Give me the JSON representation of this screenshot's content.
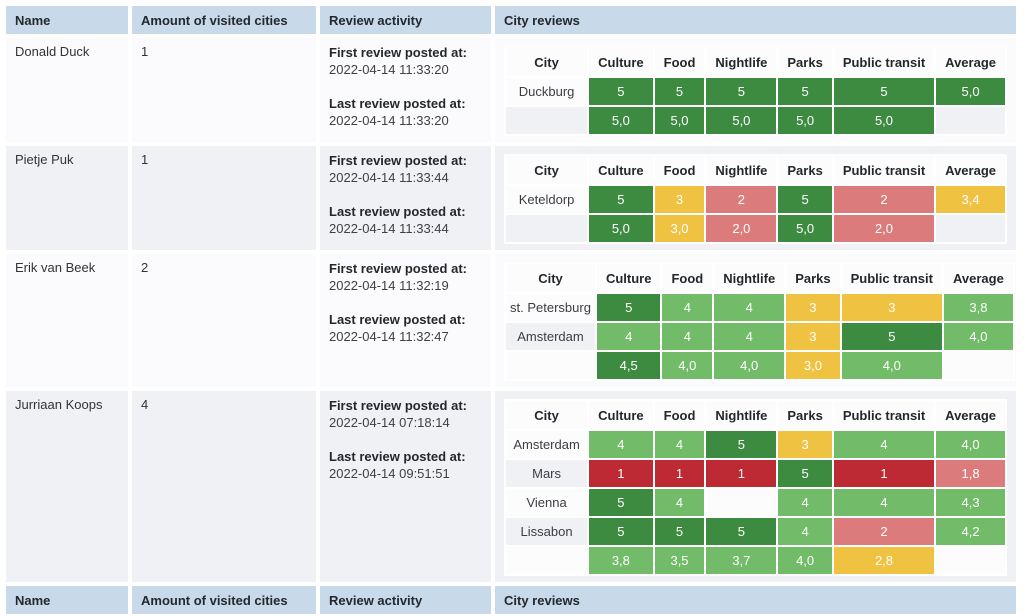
{
  "columns": {
    "name": "Name",
    "visited_cities": "Amount of visited cities",
    "review_activity": "Review activity",
    "city_reviews": "City reviews"
  },
  "inner_columns": [
    "City",
    "Culture",
    "Food",
    "Nightlife",
    "Parks",
    "Public transit",
    "Average"
  ],
  "labels": {
    "first_review": "First review posted at:",
    "last_review": "Last review posted at:"
  },
  "colors": {
    "header_bg": "#c8d9e9",
    "row_white": "#fbfbfd",
    "row_alt": "#f0f1f5",
    "cell_white": "#fcfcfd",
    "divider_gray": "#7f7f7f",
    "score_green_dark": "#3d8b40",
    "score_green_light": "#72bb69",
    "score_yellow": "#f0c242",
    "score_red_light": "#db7b7b",
    "score_red_dark": "#be2a33"
  },
  "score_scale": [
    {
      "min": 4.5,
      "color": "score_green_dark"
    },
    {
      "min": 3.5,
      "color": "score_green_light"
    },
    {
      "min": 2.5,
      "color": "score_yellow"
    },
    {
      "min": 1.5,
      "color": "score_red_light"
    },
    {
      "min": 0,
      "color": "score_red_dark"
    }
  ],
  "users": [
    {
      "name": "Donald Duck",
      "visited_cities": "1",
      "first_review": "2022-04-14 11:33:20",
      "last_review": "2022-04-14 11:33:20",
      "cities": [
        {
          "city": "Duckburg",
          "scores": [
            "5",
            "5",
            "5",
            "5",
            "5"
          ],
          "average": "5,0"
        }
      ],
      "column_averages": [
        "5,0",
        "5,0",
        "5,0",
        "5,0",
        "5,0"
      ]
    },
    {
      "name": "Pietje Puk",
      "visited_cities": "1",
      "first_review": "2022-04-14 11:33:44",
      "last_review": "2022-04-14 11:33:44",
      "cities": [
        {
          "city": "Keteldorp",
          "scores": [
            "5",
            "3",
            "2",
            "5",
            "2"
          ],
          "average": "3,4"
        }
      ],
      "column_averages": [
        "5,0",
        "3,0",
        "2,0",
        "5,0",
        "2,0"
      ]
    },
    {
      "name": "Erik van Beek",
      "visited_cities": "2",
      "first_review": "2022-04-14 11:32:19",
      "last_review": "2022-04-14 11:32:47",
      "cities": [
        {
          "city": "st. Petersburg",
          "scores": [
            "5",
            "4",
            "4",
            "3",
            "3"
          ],
          "average": "3,8"
        },
        {
          "city": "Amsterdam",
          "scores": [
            "4",
            "4",
            "4",
            "3",
            "5"
          ],
          "average": "4,0"
        }
      ],
      "column_averages": [
        "4,5",
        "4,0",
        "4,0",
        "3,0",
        "4,0"
      ]
    },
    {
      "name": "Jurriaan Koops",
      "visited_cities": "4",
      "first_review": "2022-04-14 07:18:14",
      "last_review": "2022-04-14 09:51:51",
      "cities": [
        {
          "city": "Amsterdam",
          "scores": [
            "4",
            "4",
            "5",
            "3",
            "4"
          ],
          "average": "4,0"
        },
        {
          "city": "Mars",
          "scores": [
            "1",
            "1",
            "1",
            "5",
            "1"
          ],
          "average": "1,8"
        },
        {
          "city": "Vienna",
          "scores": [
            "5",
            "4",
            "",
            "4",
            "4"
          ],
          "average": "4,3"
        },
        {
          "city": "Lissabon",
          "scores": [
            "5",
            "5",
            "5",
            "4",
            "2"
          ],
          "average": "4,2"
        }
      ],
      "column_averages": [
        "3,8",
        "3,5",
        "3,7",
        "4,0",
        "2,8"
      ]
    }
  ]
}
